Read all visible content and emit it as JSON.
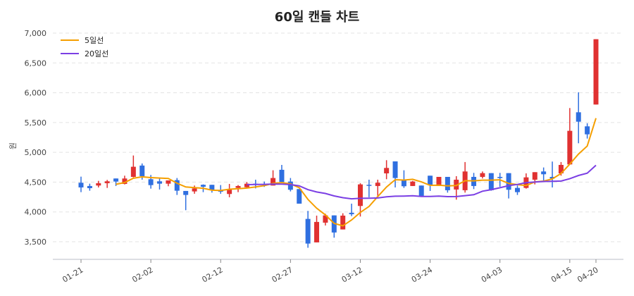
{
  "chart_data": {
    "type": "candlestick",
    "title": "60일 캔들 차트",
    "xlabel": "",
    "ylabel": "원",
    "ylim": [
      3250,
      7100
    ],
    "yticks": [
      3500,
      4000,
      4500,
      5000,
      5500,
      6000,
      6500,
      7000
    ],
    "ytick_labels": [
      "3,500",
      "4,000",
      "4,500",
      "5,000",
      "5,500",
      "6,000",
      "6,500",
      "7,000"
    ],
    "xtick_labels": [
      {
        "index": 0,
        "label": "01-21"
      },
      {
        "index": 8,
        "label": "02-02"
      },
      {
        "index": 16,
        "label": "02-12"
      },
      {
        "index": 24,
        "label": "02-27"
      },
      {
        "index": 32,
        "label": "03-12"
      },
      {
        "index": 40,
        "label": "03-24"
      },
      {
        "index": 48,
        "label": "04-03"
      },
      {
        "index": 56,
        "label": "04-15"
      },
      {
        "index": 59,
        "label": "04-20"
      }
    ],
    "grid": true,
    "legend_position": "top-left",
    "colors": {
      "up": "#e03131",
      "down": "#2f6fe0",
      "ma5": "#f59f00",
      "ma20": "#7b3fe4",
      "grid": "#e3e3e3"
    },
    "series": [
      {
        "name": "5일선",
        "window": 5
      },
      {
        "name": "20일선",
        "window": 20
      }
    ],
    "ohlc": [
      [
        4490,
        4592,
        4332,
        4411
      ],
      [
        4435,
        4474,
        4356,
        4399
      ],
      [
        4443,
        4521,
        4411,
        4482
      ],
      [
        4482,
        4537,
        4403,
        4514
      ],
      [
        4561,
        4561,
        4435,
        4510
      ],
      [
        4470,
        4608,
        4462,
        4561
      ],
      [
        4588,
        4947,
        4581,
        4758
      ],
      [
        4778,
        4813,
        4541,
        4600
      ],
      [
        4549,
        4620,
        4391,
        4450
      ],
      [
        4514,
        4561,
        4376,
        4474
      ],
      [
        4474,
        4529,
        4431,
        4529
      ],
      [
        4533,
        4569,
        4285,
        4356
      ],
      [
        4352,
        4352,
        4029,
        4285
      ],
      [
        4344,
        4443,
        4305,
        4395
      ],
      [
        4455,
        4462,
        4332,
        4423
      ],
      [
        4455,
        4455,
        4324,
        4364
      ],
      [
        4364,
        4451,
        4305,
        4340
      ],
      [
        4301,
        4470,
        4246,
        4384
      ],
      [
        4403,
        4451,
        4332,
        4435
      ],
      [
        4415,
        4502,
        4395,
        4474
      ],
      [
        4474,
        4541,
        4395,
        4458
      ],
      [
        4470,
        4510,
        4420,
        4455
      ],
      [
        4443,
        4699,
        4443,
        4569
      ],
      [
        4707,
        4789,
        4502,
        4502
      ],
      [
        4510,
        4569,
        4344,
        4372
      ],
      [
        4384,
        4384,
        4139,
        4139
      ],
      [
        3883,
        4017,
        3399,
        3469
      ],
      [
        3489,
        3938,
        3489,
        3832
      ],
      [
        3820,
        3970,
        3773,
        3942
      ],
      [
        3942,
        3942,
        3568,
        3655
      ],
      [
        3706,
        3978,
        3706,
        3938
      ],
      [
        3986,
        4139,
        3930,
        3962
      ],
      [
        4100,
        4482,
        3923,
        4462
      ],
      [
        4455,
        4541,
        4246,
        4443
      ],
      [
        4435,
        4541,
        4265,
        4490
      ],
      [
        4647,
        4868,
        4549,
        4738
      ],
      [
        4848,
        4848,
        4411,
        4569
      ],
      [
        4533,
        4699,
        4403,
        4431
      ],
      [
        4435,
        4521,
        4435,
        4510
      ],
      [
        4443,
        4443,
        4269,
        4269
      ],
      [
        4608,
        4608,
        4352,
        4450
      ],
      [
        4435,
        4588,
        4435,
        4588
      ],
      [
        4588,
        4588,
        4324,
        4364
      ],
      [
        4376,
        4600,
        4206,
        4541
      ],
      [
        4364,
        4837,
        4324,
        4679
      ],
      [
        4588,
        4655,
        4383,
        4435
      ],
      [
        4588,
        4679,
        4561,
        4651
      ],
      [
        4651,
        4651,
        4356,
        4364
      ],
      [
        4588,
        4655,
        4423,
        4569
      ],
      [
        4651,
        4651,
        4226,
        4372
      ],
      [
        4403,
        4443,
        4285,
        4332
      ],
      [
        4403,
        4647,
        4391,
        4580
      ],
      [
        4541,
        4667,
        4462,
        4667
      ],
      [
        4679,
        4746,
        4529,
        4632
      ],
      [
        4588,
        4845,
        4411,
        4561
      ],
      [
        4647,
        4837,
        4608,
        4789
      ],
      [
        4797,
        5743,
        4797,
        5361
      ],
      [
        5672,
        6007,
        5152,
        5514
      ],
      [
        5436,
        5487,
        5231,
        5302
      ],
      [
        5802,
        6898,
        5802,
        6898
      ]
    ]
  }
}
